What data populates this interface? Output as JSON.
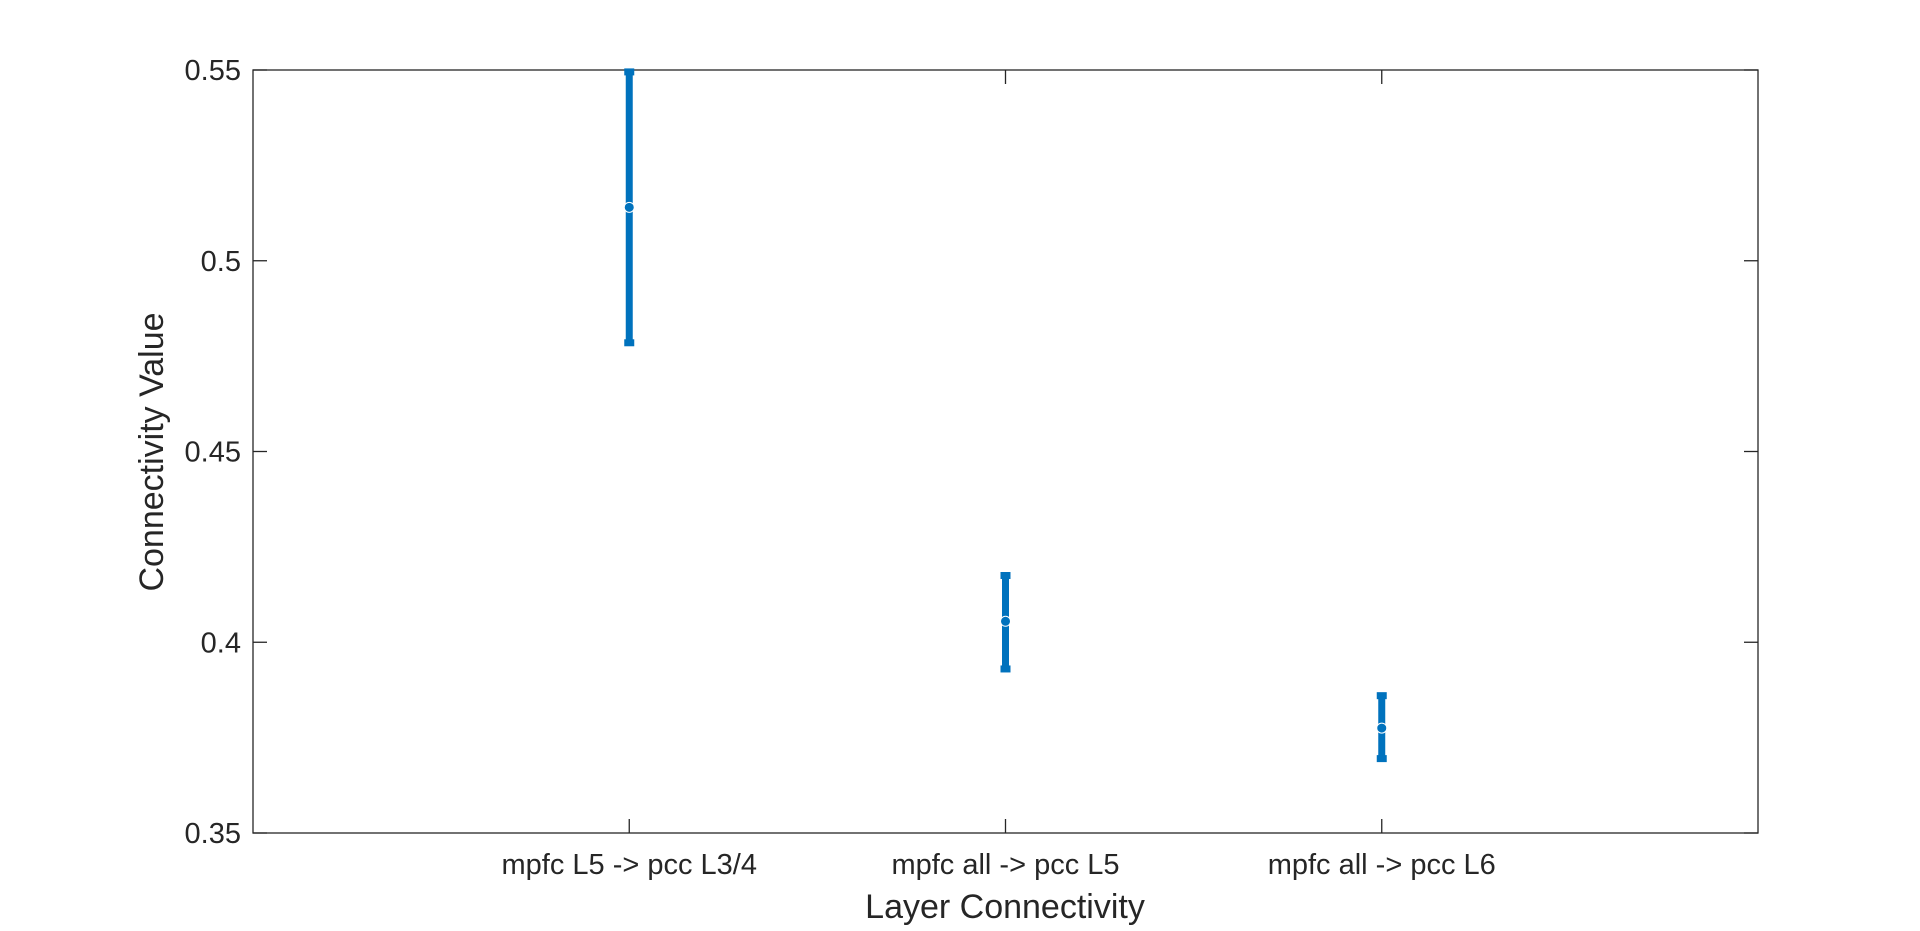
{
  "chart_data": {
    "type": "errorbar",
    "title": "",
    "xlabel": "Layer Connectivity",
    "ylabel": "Connectivity Value",
    "categories": [
      "mpfc L5 -> pcc L3/4",
      "mpfc all -> pcc L5",
      "mpfc all -> pcc L6"
    ],
    "x_positions": [
      1,
      2,
      3
    ],
    "xlim": [
      0,
      4
    ],
    "ylim": [
      0.35,
      0.55
    ],
    "yticks": [
      0.35,
      0.4,
      0.45,
      0.5,
      0.55
    ],
    "ytick_labels": [
      "0.35",
      "0.4",
      "0.45",
      "0.5",
      "0.55"
    ],
    "series": [
      {
        "mean": [
          0.514,
          0.4055,
          0.3775
        ],
        "lower": [
          0.4785,
          0.393,
          0.3695
        ],
        "upper": [
          0.5495,
          0.4175,
          0.386
        ]
      }
    ],
    "grid": false,
    "box": true,
    "colors": {
      "series": "#0072BD",
      "axis": "#262626"
    }
  }
}
